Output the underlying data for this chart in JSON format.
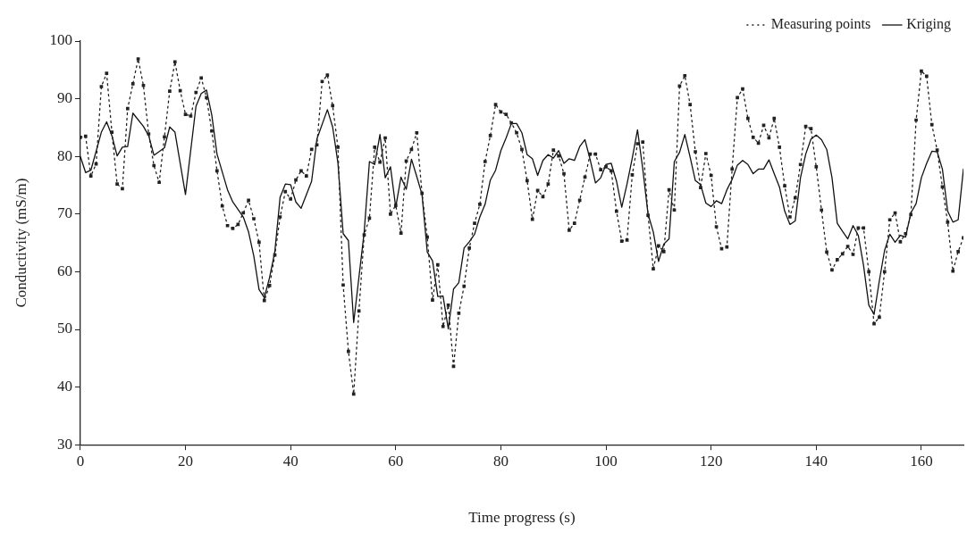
{
  "chart_data": {
    "type": "line",
    "xlabel": "Time progress (s)",
    "ylabel": "Conductivity (mS/m)",
    "xlim": [
      0,
      168
    ],
    "xticks": [
      0,
      20,
      40,
      60,
      80,
      100,
      120,
      140,
      160
    ],
    "ylim": [
      30,
      100
    ],
    "yticks": [
      30,
      40,
      50,
      60,
      70,
      80,
      90,
      100
    ],
    "grid": false,
    "legend": "top right",
    "series": [
      {
        "name": "Measuring points",
        "color": "#222222",
        "line_style": "dotted",
        "marker": "square",
        "x": [
          0,
          1,
          2,
          3,
          4,
          5,
          6,
          7,
          8,
          9,
          10,
          11,
          12,
          13,
          14,
          15,
          16,
          17,
          18,
          19,
          20,
          21,
          22,
          23,
          24,
          25,
          26,
          27,
          28,
          29,
          30,
          31,
          32,
          33,
          34,
          35,
          36,
          37,
          38,
          39,
          40,
          41,
          42,
          43,
          44,
          45,
          46,
          47,
          48,
          49,
          50,
          51,
          52,
          53,
          54,
          55,
          56,
          57,
          58,
          59,
          60,
          61,
          62,
          63,
          64,
          65,
          66,
          67,
          68,
          69,
          70,
          71,
          72,
          73,
          74,
          75,
          76,
          77,
          78,
          79,
          80,
          81,
          82,
          83,
          84,
          85,
          86,
          87,
          88,
          89,
          90,
          91,
          92,
          93,
          94,
          95,
          96,
          97,
          98,
          99,
          100,
          101,
          102,
          103,
          104,
          105,
          106,
          107,
          108,
          109,
          110,
          111,
          112,
          113,
          114,
          115,
          116,
          117,
          118,
          119,
          120,
          121,
          122,
          123,
          124,
          125,
          126,
          127,
          128,
          129,
          130,
          131,
          132,
          133,
          134,
          135,
          136,
          137,
          138,
          139,
          140,
          141,
          142,
          143,
          144,
          145,
          146,
          147,
          148,
          149,
          150,
          151,
          152,
          153,
          154,
          155,
          156,
          157,
          158,
          159,
          160,
          161,
          162,
          163,
          164,
          165,
          166,
          167,
          168
        ],
        "values": [
          83.3,
          83.5,
          76.6,
          78.7,
          92.1,
          94.4,
          84.2,
          75.2,
          74.4,
          88.3,
          92.6,
          96.9,
          92.3,
          83.9,
          78.4,
          75.5,
          83.4,
          91.3,
          96.4,
          91.4,
          87.3,
          87.0,
          91.1,
          93.6,
          90.2,
          84.4,
          77.5,
          71.4,
          68.0,
          67.5,
          68.2,
          70.2,
          72.4,
          69.2,
          65.1,
          55.0,
          57.6,
          62.9,
          69.5,
          73.9,
          72.6,
          75.9,
          77.5,
          76.6,
          81.2,
          82.0,
          93.0,
          94.1,
          88.8,
          81.6,
          57.7,
          46.2,
          38.8,
          53.2,
          66.4,
          69.3,
          81.6,
          79.0,
          83.2,
          70.0,
          71.5,
          66.7,
          79.2,
          81.2,
          84.1,
          73.6,
          66.0,
          55.1,
          61.2,
          50.5,
          54.2,
          43.6,
          52.8,
          57.5,
          64.1,
          68.4,
          71.7,
          79.1,
          83.6,
          89.0,
          87.7,
          87.3,
          85.8,
          84.1,
          81.2,
          75.8,
          69.1,
          74.1,
          73.0,
          75.2,
          81.1,
          80.1,
          77.0,
          67.2,
          68.4,
          72.4,
          76.4,
          80.4,
          80.4,
          77.7,
          78.2,
          77.5,
          70.5,
          65.3,
          65.5,
          76.8,
          82.2,
          82.5,
          69.8,
          60.5,
          64.5,
          63.5,
          74.2,
          70.7,
          92.2,
          94.0,
          89.0,
          80.8,
          74.6,
          80.5,
          76.7,
          67.8,
          64.0,
          64.3,
          77.8,
          90.2,
          91.7,
          86.6,
          83.3,
          82.3,
          85.4,
          83.2,
          86.6,
          81.6,
          74.9,
          69.5,
          72.8,
          78.6,
          85.2,
          84.8,
          78.2,
          70.7,
          63.4,
          60.3,
          62.1,
          63.1,
          64.4,
          63.0,
          67.6,
          67.6,
          60.0,
          51.0,
          52.1,
          60.0,
          69.0,
          70.2,
          65.2,
          66.6,
          69.9,
          86.3,
          94.8,
          93.9,
          85.5,
          81.1,
          74.7,
          68.6,
          60.1,
          63.5,
          65.9
        ]
      },
      {
        "name": "Kriging",
        "color": "#111111",
        "line_style": "solid",
        "marker": "none",
        "x": [
          0,
          1,
          2,
          4,
          5,
          6,
          7,
          8,
          9,
          10,
          12,
          13,
          14,
          16,
          17,
          18,
          20,
          22,
          23,
          24,
          25,
          26,
          28,
          29,
          31,
          32,
          33,
          34,
          35,
          36,
          37,
          38,
          39,
          40,
          41,
          42,
          44,
          45,
          47,
          48,
          49,
          50,
          51,
          52,
          54,
          55,
          56,
          57,
          58,
          59,
          60,
          61,
          62,
          63,
          64,
          65,
          66,
          67,
          68,
          69,
          70,
          71,
          72,
          73,
          74,
          75,
          76,
          77,
          78,
          79,
          80,
          81,
          82,
          83,
          84,
          85,
          86,
          87,
          88,
          89,
          90,
          91,
          92,
          93,
          94,
          95,
          96,
          97,
          98,
          99,
          100,
          101,
          102,
          103,
          104,
          105,
          106,
          107,
          108,
          109,
          110,
          111,
          112,
          113,
          114,
          115,
          116,
          117,
          118,
          119,
          120,
          121,
          122,
          123,
          124,
          125,
          126,
          127,
          128,
          129,
          130,
          131,
          132,
          133,
          134,
          135,
          136,
          137,
          138,
          139,
          140,
          141,
          142,
          143,
          144,
          145,
          146,
          147,
          148,
          149,
          150,
          151,
          152,
          153,
          154,
          155,
          156,
          157,
          158,
          159,
          160,
          161,
          162,
          163,
          164,
          165,
          166,
          167,
          168
        ],
        "values": [
          80.0,
          77.2,
          77.6,
          84.2,
          86.0,
          83.6,
          80.1,
          81.6,
          81.7,
          87.5,
          85.2,
          83.6,
          80.2,
          81.5,
          85.1,
          84.2,
          73.4,
          88.7,
          90.9,
          91.5,
          87.2,
          80.4,
          74.2,
          72.1,
          69.5,
          66.9,
          62.7,
          56.9,
          55.5,
          59.0,
          63.5,
          72.9,
          75.2,
          75.1,
          72.1,
          71.0,
          75.7,
          83.0,
          88.1,
          85.1,
          78.9,
          66.6,
          65.4,
          51.2,
          66.9,
          79.1,
          78.6,
          83.8,
          76.3,
          78.2,
          71.2,
          76.4,
          74.3,
          79.5,
          76.5,
          73.4,
          63.4,
          61.9,
          55.7,
          55.8,
          50.1,
          57.0,
          58.1,
          64.1,
          65.2,
          66.5,
          69.5,
          71.7,
          75.9,
          77.6,
          81.0,
          83.2,
          85.7,
          85.7,
          84.1,
          80.3,
          79.6,
          76.7,
          79.3,
          80.3,
          79.7,
          81.0,
          78.8,
          79.6,
          79.3,
          81.7,
          82.9,
          79.4,
          75.4,
          76.3,
          78.6,
          78.8,
          75.7,
          71.2,
          75.2,
          79.7,
          84.6,
          77.8,
          70.0,
          66.9,
          61.8,
          64.8,
          65.7,
          79.1,
          80.7,
          83.8,
          79.9,
          75.8,
          75.1,
          71.9,
          71.3,
          72.3,
          71.8,
          74.2,
          76.0,
          78.5,
          79.3,
          78.6,
          77.0,
          77.8,
          77.8,
          79.4,
          77.0,
          74.7,
          70.5,
          68.2,
          68.8,
          76.3,
          80.4,
          83.0,
          83.7,
          82.9,
          81.2,
          76.3,
          68.4,
          67.0,
          65.7,
          68.0,
          66.3,
          61.1,
          54.2,
          52.6,
          58.4,
          63.7,
          66.5,
          65.1,
          66.3,
          66.0,
          70.2,
          71.8,
          76.3,
          78.8,
          80.9,
          80.8,
          77.8,
          70.5,
          68.6,
          69.0,
          77.8
        ]
      }
    ]
  }
}
